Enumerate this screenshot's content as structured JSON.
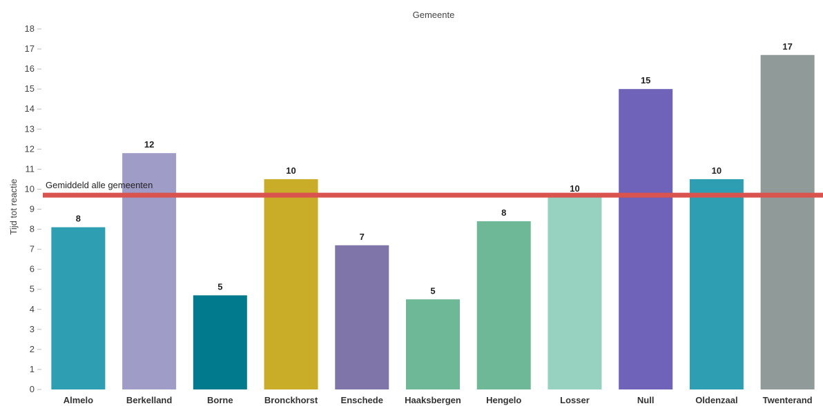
{
  "chart_data": {
    "type": "bar",
    "title": "Gemeente",
    "xlabel": "",
    "ylabel": "Tijd tot reactie",
    "ylim": [
      0,
      18
    ],
    "yticks": [
      0,
      1,
      2,
      3,
      4,
      5,
      6,
      7,
      8,
      9,
      10,
      11,
      12,
      13,
      14,
      15,
      16,
      17,
      18
    ],
    "grid": false,
    "categories": [
      "Almelo",
      "Berkelland",
      "Borne",
      "Bronckhorst",
      "Enschede",
      "Haaksbergen",
      "Hengelo",
      "Losser",
      "Null",
      "Oldenzaal",
      "Twenterand"
    ],
    "values": [
      8.1,
      11.8,
      4.7,
      10.5,
      7.2,
      4.5,
      8.4,
      9.6,
      15.0,
      10.5,
      16.7
    ],
    "data_labels": [
      "8",
      "12",
      "5",
      "10",
      "7",
      "5",
      "8",
      "10",
      "15",
      "10",
      "17"
    ],
    "colors": [
      "#2e9fb3",
      "#a09cc8",
      "#007a8c",
      "#c9ac28",
      "#8075a8",
      "#6fb897",
      "#6fb897",
      "#97d1bf",
      "#6f62b9",
      "#2e9fb3",
      "#909a99"
    ],
    "reference_line": {
      "label": "Gemiddeld alle gemeenten",
      "value": 9.7,
      "color": "#d9534f"
    }
  }
}
